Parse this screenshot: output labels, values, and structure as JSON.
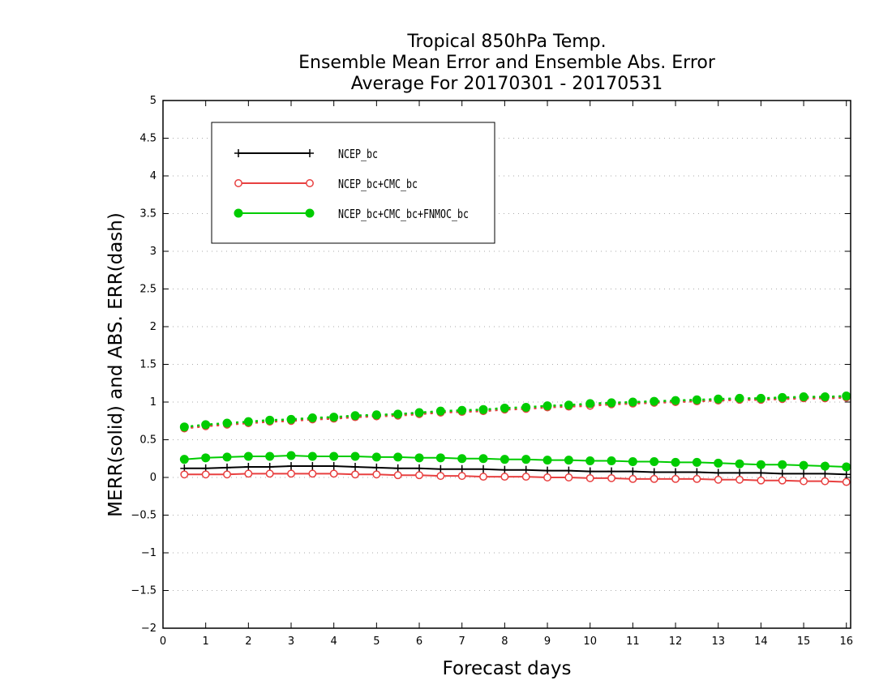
{
  "chart_data": {
    "type": "line",
    "title": [
      "Tropical 850hPa Temp.",
      "Ensemble Mean Error and Ensemble Abs. Error",
      "Average For 20170301 - 20170531"
    ],
    "xlabel": "Forecast days",
    "ylabel": "MERR(solid) and ABS. ERR(dash)",
    "xlim": [
      0,
      16.1
    ],
    "ylim": [
      -2,
      5
    ],
    "x_ticks": [
      0,
      1,
      2,
      3,
      4,
      5,
      6,
      7,
      8,
      9,
      10,
      11,
      12,
      13,
      14,
      15,
      16
    ],
    "y_ticks": [
      -2,
      -1.5,
      -1,
      -0.5,
      0,
      0.5,
      1,
      1.5,
      2,
      2.5,
      3,
      3.5,
      4,
      4.5,
      5
    ],
    "grid": "horizontal dotted",
    "legend_position": "top-left",
    "x": [
      0.5,
      1,
      1.5,
      2,
      2.5,
      3,
      3.5,
      4,
      4.5,
      5,
      5.5,
      6,
      6.5,
      7,
      7.5,
      8,
      8.5,
      9,
      9.5,
      10,
      10.5,
      11,
      11.5,
      12,
      12.5,
      13,
      13.5,
      14,
      14.5,
      15,
      15.5,
      16
    ],
    "series": [
      {
        "name": "NCEP_bc",
        "color": "#000000",
        "marker": "plus",
        "merr": [
          0.12,
          0.12,
          0.13,
          0.14,
          0.14,
          0.15,
          0.15,
          0.15,
          0.14,
          0.13,
          0.12,
          0.12,
          0.11,
          0.11,
          0.11,
          0.1,
          0.1,
          0.09,
          0.09,
          0.08,
          0.08,
          0.08,
          0.07,
          0.07,
          0.07,
          0.06,
          0.06,
          0.06,
          0.05,
          0.05,
          0.05,
          0.04
        ],
        "abs_err": [
          0.66,
          0.69,
          0.71,
          0.73,
          0.75,
          0.76,
          0.78,
          0.79,
          0.81,
          0.82,
          0.84,
          0.85,
          0.87,
          0.88,
          0.89,
          0.91,
          0.92,
          0.94,
          0.95,
          0.96,
          0.98,
          0.99,
          1.0,
          1.01,
          1.02,
          1.03,
          1.04,
          1.04,
          1.05,
          1.06,
          1.06,
          1.07
        ]
      },
      {
        "name": "NCEP_bc+CMC_bc",
        "color": "#e84040",
        "marker": "open-circle",
        "merr": [
          0.04,
          0.04,
          0.04,
          0.05,
          0.05,
          0.05,
          0.05,
          0.05,
          0.04,
          0.04,
          0.03,
          0.03,
          0.02,
          0.02,
          0.01,
          0.01,
          0.01,
          0.0,
          0.0,
          -0.01,
          -0.01,
          -0.02,
          -0.02,
          -0.02,
          -0.02,
          -0.03,
          -0.03,
          -0.04,
          -0.04,
          -0.05,
          -0.05,
          -0.06
        ],
        "abs_err": [
          0.65,
          0.68,
          0.7,
          0.72,
          0.74,
          0.75,
          0.77,
          0.78,
          0.8,
          0.81,
          0.82,
          0.84,
          0.86,
          0.87,
          0.88,
          0.9,
          0.91,
          0.93,
          0.94,
          0.95,
          0.97,
          0.98,
          0.99,
          1.0,
          1.01,
          1.02,
          1.03,
          1.03,
          1.04,
          1.05,
          1.05,
          1.06
        ]
      },
      {
        "name": "NCEP_bc+CMC_bc+FNMOC_bc",
        "color": "#00cc00",
        "marker": "filled-circle",
        "merr": [
          0.24,
          0.26,
          0.27,
          0.28,
          0.28,
          0.29,
          0.28,
          0.28,
          0.28,
          0.27,
          0.27,
          0.26,
          0.26,
          0.25,
          0.25,
          0.24,
          0.24,
          0.23,
          0.23,
          0.22,
          0.22,
          0.21,
          0.21,
          0.2,
          0.2,
          0.19,
          0.18,
          0.17,
          0.17,
          0.16,
          0.15,
          0.14
        ],
        "abs_err": [
          0.67,
          0.7,
          0.72,
          0.74,
          0.76,
          0.77,
          0.79,
          0.8,
          0.82,
          0.83,
          0.84,
          0.86,
          0.88,
          0.89,
          0.9,
          0.92,
          0.93,
          0.95,
          0.96,
          0.98,
          0.99,
          1.0,
          1.01,
          1.02,
          1.03,
          1.04,
          1.05,
          1.05,
          1.06,
          1.07,
          1.07,
          1.08
        ]
      }
    ]
  }
}
